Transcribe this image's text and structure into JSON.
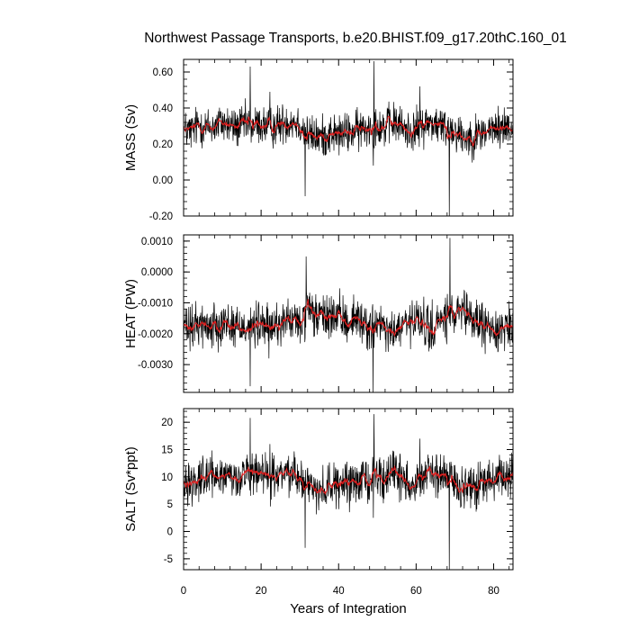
{
  "title": "Northwest Passage Transports, b.e20.BHIST.f09_g17.20thC.160_01",
  "colors": {
    "raw": "#000000",
    "smooth": "#e02020",
    "axes": "#000000"
  },
  "chart_data": {
    "type": "line",
    "xlabel": "Years of Integration",
    "xlim": [
      0,
      85
    ],
    "xticks": [
      0,
      20,
      40,
      60,
      80
    ],
    "xtick_labels": [
      "0",
      "20",
      "40",
      "60",
      "80"
    ],
    "series_meta": {
      "raw_line": "monthly values (black)",
      "smooth_line": "running mean (red)"
    },
    "panels": [
      {
        "ylabel": "MASS (Sv)",
        "ylim": [
          -0.2,
          0.67
        ],
        "yticks": [
          -0.2,
          0.0,
          0.2,
          0.4,
          0.6
        ],
        "ytick_labels": [
          "-0.20",
          "0.00",
          "0.20",
          "0.40",
          "0.60"
        ],
        "baseline": [
          [
            0,
            0.28
          ],
          [
            2,
            0.27
          ],
          [
            4,
            0.31
          ],
          [
            6,
            0.29
          ],
          [
            8,
            0.3
          ],
          [
            10,
            0.32
          ],
          [
            12,
            0.3
          ],
          [
            14,
            0.29
          ],
          [
            16,
            0.31
          ],
          [
            18,
            0.3
          ],
          [
            20,
            0.31
          ],
          [
            22,
            0.29
          ],
          [
            24,
            0.3
          ],
          [
            26,
            0.32
          ],
          [
            28,
            0.33
          ],
          [
            30,
            0.31
          ],
          [
            32,
            0.25
          ],
          [
            34,
            0.24
          ],
          [
            36,
            0.24
          ],
          [
            38,
            0.26
          ],
          [
            40,
            0.25
          ],
          [
            42,
            0.26
          ],
          [
            44,
            0.27
          ],
          [
            46,
            0.28
          ],
          [
            48,
            0.3
          ],
          [
            50,
            0.31
          ],
          [
            52,
            0.29
          ],
          [
            54,
            0.32
          ],
          [
            56,
            0.3
          ],
          [
            58,
            0.27
          ],
          [
            60,
            0.28
          ],
          [
            62,
            0.31
          ],
          [
            64,
            0.32
          ],
          [
            66,
            0.3
          ],
          [
            68,
            0.29
          ],
          [
            70,
            0.28
          ],
          [
            72,
            0.24
          ],
          [
            74,
            0.24
          ],
          [
            76,
            0.25
          ],
          [
            78,
            0.27
          ],
          [
            80,
            0.28
          ],
          [
            82,
            0.29
          ],
          [
            84,
            0.3
          ],
          [
            85,
            0.29
          ]
        ],
        "amplitude": 0.07,
        "spikes": [
          [
            17.2,
            0.63
          ],
          [
            31.4,
            -0.09
          ],
          [
            49.1,
            0.66
          ],
          [
            49.0,
            0.08
          ],
          [
            68.6,
            -0.2
          ],
          [
            22.3,
            0.49
          ],
          [
            61.0,
            0.52
          ]
        ]
      },
      {
        "ylabel": "HEAT (PW)",
        "ylim": [
          -0.0039,
          0.0012
        ],
        "yticks": [
          -0.003,
          -0.002,
          -0.001,
          0.0,
          0.001
        ],
        "ytick_labels": [
          "-0.0030",
          "-0.0020",
          "-0.0010",
          "0.0000",
          "0.0010"
        ],
        "baseline": [
          [
            0,
            -0.0018
          ],
          [
            2,
            -0.0019
          ],
          [
            4,
            -0.0016
          ],
          [
            6,
            -0.0018
          ],
          [
            8,
            -0.0017
          ],
          [
            10,
            -0.0016
          ],
          [
            12,
            -0.0017
          ],
          [
            14,
            -0.0018
          ],
          [
            16,
            -0.0017
          ],
          [
            18,
            -0.0018
          ],
          [
            20,
            -0.0017
          ],
          [
            22,
            -0.0018
          ],
          [
            24,
            -0.0017
          ],
          [
            26,
            -0.0016
          ],
          [
            28,
            -0.0016
          ],
          [
            30,
            -0.0017
          ],
          [
            32,
            -0.0013
          ],
          [
            34,
            -0.0014
          ],
          [
            36,
            -0.0015
          ],
          [
            38,
            -0.0014
          ],
          [
            40,
            -0.0015
          ],
          [
            42,
            -0.0016
          ],
          [
            44,
            -0.0015
          ],
          [
            46,
            -0.0016
          ],
          [
            48,
            -0.0018
          ],
          [
            50,
            -0.0017
          ],
          [
            52,
            -0.0019
          ],
          [
            54,
            -0.002
          ],
          [
            56,
            -0.0018
          ],
          [
            58,
            -0.0017
          ],
          [
            60,
            -0.0016
          ],
          [
            62,
            -0.0018
          ],
          [
            64,
            -0.0019
          ],
          [
            66,
            -0.0016
          ],
          [
            68,
            -0.0015
          ],
          [
            70,
            -0.0014
          ],
          [
            72,
            -0.0014
          ],
          [
            74,
            -0.0015
          ],
          [
            76,
            -0.0016
          ],
          [
            78,
            -0.0018
          ],
          [
            80,
            -0.0019
          ],
          [
            82,
            -0.0018
          ],
          [
            84,
            -0.0017
          ],
          [
            85,
            -0.0018
          ]
        ],
        "amplitude": 0.00045,
        "spikes": [
          [
            17.2,
            -0.0037
          ],
          [
            31.6,
            0.0005
          ],
          [
            48.9,
            -0.0039
          ],
          [
            68.7,
            0.0011
          ],
          [
            22.0,
            -0.0028
          ],
          [
            62.0,
            -0.0008
          ]
        ]
      },
      {
        "ylabel": "SALT (Sv*ppt)",
        "ylim": [
          -7,
          22.5
        ],
        "yticks": [
          -5,
          0,
          5,
          10,
          15,
          20
        ],
        "ytick_labels": [
          "-5",
          "0",
          "5",
          "10",
          "15",
          "20"
        ],
        "baseline": [
          [
            0,
            9.5
          ],
          [
            2,
            9.0
          ],
          [
            4,
            10.3
          ],
          [
            6,
            9.8
          ],
          [
            8,
            10.0
          ],
          [
            10,
            10.6
          ],
          [
            12,
            10.0
          ],
          [
            14,
            9.7
          ],
          [
            16,
            10.4
          ],
          [
            18,
            10.0
          ],
          [
            20,
            10.3
          ],
          [
            22,
            9.7
          ],
          [
            24,
            10.0
          ],
          [
            26,
            10.7
          ],
          [
            28,
            11.0
          ],
          [
            30,
            10.3
          ],
          [
            32,
            8.3
          ],
          [
            34,
            8.0
          ],
          [
            36,
            8.0
          ],
          [
            38,
            8.6
          ],
          [
            40,
            8.3
          ],
          [
            42,
            8.6
          ],
          [
            44,
            9.0
          ],
          [
            46,
            9.3
          ],
          [
            48,
            10.0
          ],
          [
            50,
            10.3
          ],
          [
            52,
            9.7
          ],
          [
            54,
            10.6
          ],
          [
            56,
            10.0
          ],
          [
            58,
            9.0
          ],
          [
            60,
            9.3
          ],
          [
            62,
            10.3
          ],
          [
            64,
            10.6
          ],
          [
            66,
            10.0
          ],
          [
            68,
            9.7
          ],
          [
            70,
            9.3
          ],
          [
            72,
            8.0
          ],
          [
            74,
            8.0
          ],
          [
            76,
            8.3
          ],
          [
            78,
            9.0
          ],
          [
            80,
            9.3
          ],
          [
            82,
            9.7
          ],
          [
            84,
            10.0
          ],
          [
            85,
            9.7
          ]
        ],
        "amplitude": 2.4,
        "spikes": [
          [
            17.2,
            20.8
          ],
          [
            31.4,
            -3.0
          ],
          [
            49.1,
            21.5
          ],
          [
            49.0,
            2.5
          ],
          [
            68.6,
            -7
          ],
          [
            22.3,
            16.0
          ],
          [
            61.0,
            17.0
          ]
        ]
      }
    ]
  }
}
